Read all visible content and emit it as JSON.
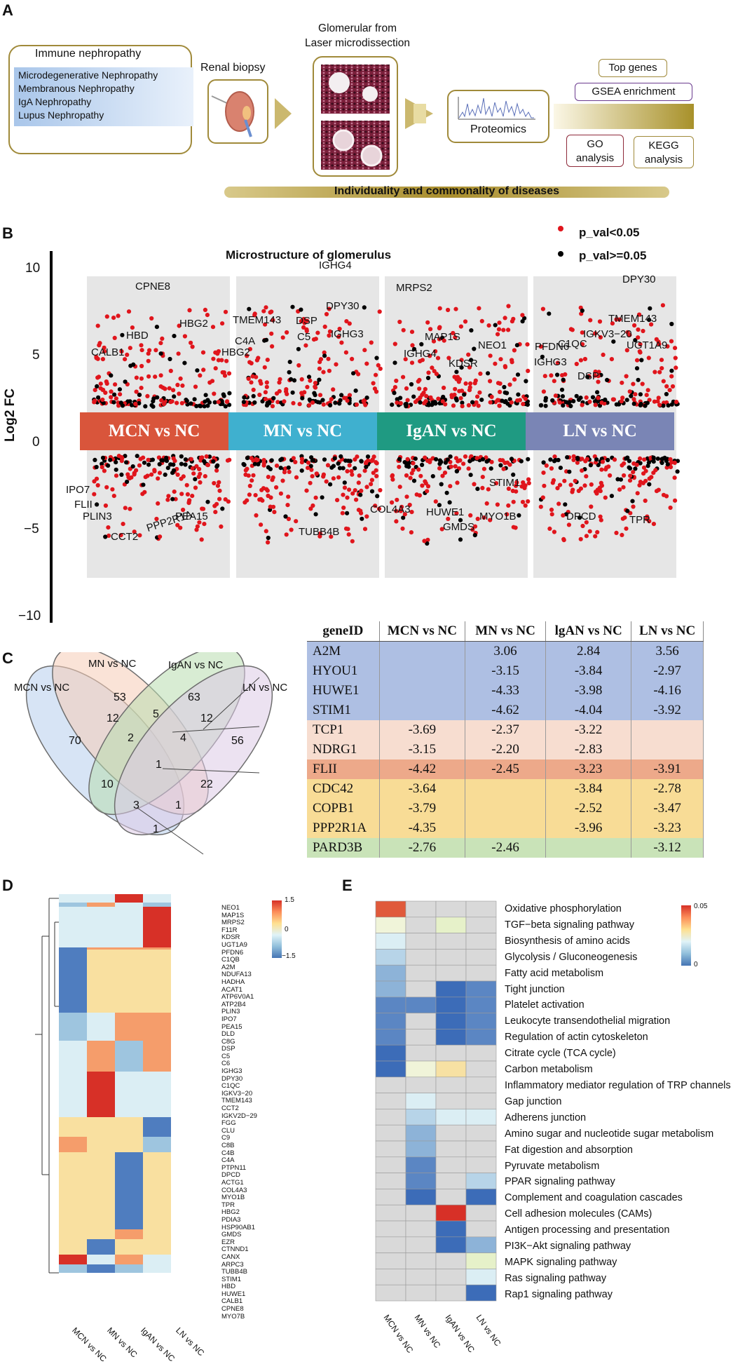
{
  "panelA": {
    "letter": "A",
    "immune_title": "Immune nephropathy",
    "diseases": [
      "Microdegenerative Nephropathy",
      "Membranous Nephropathy",
      "IgA Nephropathy",
      "Lupus Nephropathy"
    ],
    "biopsy_label": "Renal biopsy",
    "lcm_label_1": "Glomerular from",
    "lcm_label_2": "Laser microdissection",
    "proteomics_label": "Proteomics",
    "top_genes": "Top genes",
    "gsea": "GSEA enrichment",
    "go_1": "GO",
    "go_2": "analysis",
    "kegg_1": "KEGG",
    "kegg_2": "analysis",
    "bottom_banner": "Individuality and commonality of diseases"
  },
  "panelB": {
    "letter": "B",
    "title": "Microstructure of glomerulus",
    "legend_sig": "p_val<0.05",
    "legend_nonsig": "p_val>=0.05",
    "colors": {
      "sig": "#e0151c",
      "nonsig": "#000000"
    },
    "ylabel": "Log2 FC",
    "yticks": [
      "10",
      "5",
      "0",
      "−5",
      "−10"
    ],
    "groups": [
      {
        "label": "MCN vs NC",
        "color": "#d9553b"
      },
      {
        "label": "MN vs NC",
        "color": "#3fb0cf"
      },
      {
        "label": "IgAN vs NC",
        "color": "#1f9a82"
      },
      {
        "label": "LN vs NC",
        "color": "#7a85b5"
      }
    ],
    "genes": {
      "mcn": [
        "CPNE8",
        "HBG2",
        "HBD",
        "CALB1",
        "IPO7",
        "FLII",
        "PLIN3",
        "CCT2",
        "PPP2R1A",
        "PEA15"
      ],
      "mn": [
        "IGHG4",
        "TMEM143",
        "DPY30",
        "C4A",
        "C5",
        "DSP",
        "IGHG3",
        "HBG2",
        "TUBB4B"
      ],
      "igan": [
        "MRPS2",
        "MAP1S",
        "NEO1",
        "IGHG4",
        "KDSR",
        "COL4A3",
        "STIM1",
        "HUWE1",
        "MYO1B",
        "GMDS"
      ],
      "ln": [
        "DPY30",
        "PFDN6",
        "TMEM143",
        "IGKV3−20",
        "C1QC",
        "UGT1A9",
        "IGHG3",
        "DSP",
        "DPCD",
        "TPR"
      ]
    }
  },
  "panelC": {
    "letter": "C",
    "venn_labels": [
      "MCN vs NC",
      "MN vs NC",
      "IgAN vs NC",
      "LN vs NC"
    ],
    "venn_counts": [
      "70",
      "53",
      "63",
      "56",
      "12",
      "5",
      "12",
      "2",
      "4",
      "1",
      "10",
      "22",
      "3",
      "1",
      "1"
    ],
    "table_headers": [
      "geneID",
      "MCN vs NC",
      "MN vs NC",
      "lgAN vs NC",
      "LN vs NC"
    ],
    "rows": [
      {
        "gene": "A2M",
        "mcn": "",
        "mn": "3.06",
        "igan": "2.84",
        "ln": "3.56",
        "bg": "#aebfe3"
      },
      {
        "gene": "HYOU1",
        "mcn": "",
        "mn": "-3.15",
        "igan": "-3.84",
        "ln": "-2.97",
        "bg": "#aebfe3"
      },
      {
        "gene": "HUWE1",
        "mcn": "",
        "mn": "-4.33",
        "igan": "-3.98",
        "ln": "-4.16",
        "bg": "#aebfe3"
      },
      {
        "gene": "STIM1",
        "mcn": "",
        "mn": "-4.62",
        "igan": "-4.04",
        "ln": "-3.92",
        "bg": "#aebfe3"
      },
      {
        "gene": "TCP1",
        "mcn": "-3.69",
        "mn": "-2.37",
        "igan": "-3.22",
        "ln": "",
        "bg": "#f7ddd0"
      },
      {
        "gene": "NDRG1",
        "mcn": "-3.15",
        "mn": "-2.20",
        "igan": "-2.83",
        "ln": "",
        "bg": "#f7ddd0"
      },
      {
        "gene": "FLII",
        "mcn": "-4.42",
        "mn": "-2.45",
        "igan": "-3.23",
        "ln": "-3.91",
        "bg": "#eda98a"
      },
      {
        "gene": "CDC42",
        "mcn": "-3.64",
        "mn": "",
        "igan": "-3.84",
        "ln": "-2.78",
        "bg": "#f8dc96"
      },
      {
        "gene": "COPB1",
        "mcn": "-3.79",
        "mn": "",
        "igan": "-2.52",
        "ln": "-3.47",
        "bg": "#f8dc96"
      },
      {
        "gene": "PPP2R1A",
        "mcn": "-4.35",
        "mn": "",
        "igan": "-3.96",
        "ln": "-3.23",
        "bg": "#f8dc96"
      },
      {
        "gene": "PARD3B",
        "mcn": "-2.76",
        "mn": "-2.46",
        "igan": "",
        "ln": "-3.12",
        "bg": "#c9e3b8"
      }
    ]
  },
  "panelD": {
    "letter": "D",
    "legend": [
      "1.5",
      "0",
      "−1.5"
    ],
    "xlabels": [
      "MCN vs NC",
      "MN vs NC",
      "IgAN vs NC",
      "LN vs NC"
    ],
    "genes": [
      "NEO1",
      "MAP1S",
      "MRPS2",
      "F11R",
      "KDSR",
      "UGT1A9",
      "PFDN6",
      "C1QB",
      "A2M",
      "NDUFA13",
      "HADHA",
      "ACAT1",
      "ATP6V0A1",
      "ATP2B4",
      "PLIN3",
      "IPO7",
      "PEA15",
      "DLD",
      "C8G",
      "DSP",
      "C5",
      "C6",
      "IGHG3",
      "DPY30",
      "C1QC",
      "IGKV3−20",
      "TMEM143",
      "CCT2",
      "IGKV2D−29",
      "FGG",
      "CLU",
      "C9",
      "C8B",
      "C4B",
      "C4A",
      "PTPN11",
      "DPCD",
      "ACTG1",
      "COL4A3",
      "MYO1B",
      "TPR",
      "HBG2",
      "PDIA3",
      "HSP90AB1",
      "GMDS",
      "EZR",
      "CTNND1",
      "CANX",
      "ARPC3",
      "TUBB4B",
      "STIM1",
      "HBD",
      "HUWE1",
      "CALB1",
      "CPNE8",
      "MYO7B"
    ]
  },
  "panelE": {
    "letter": "E",
    "legend_top": "0.05",
    "legend_bottom": "0",
    "xlabels": [
      "MCN vs NC",
      "MN vs NC",
      "IgAN vs NC",
      "LN vs NC"
    ],
    "pathways": [
      "Oxidative phosphorylation",
      "TGF−beta signaling pathway",
      "Biosynthesis of amino acids",
      "Glycolysis / Gluconeogenesis",
      "Fatty acid metabolism",
      "Tight junction",
      "Platelet activation",
      "Leukocyte transendothelial migration",
      "Regulation of actin cytoskeleton",
      "Citrate cycle (TCA cycle)",
      "Carbon metabolism",
      "Inflammatory mediator regulation of TRP channels",
      "Gap junction",
      "Adherens junction",
      "Amino sugar and nucleotide sugar metabolism",
      "Fat digestion and absorption",
      "Pyruvate metabolism",
      "PPAR signaling pathway",
      "Complement and coagulation cascades",
      "Cell adhesion molecules (CAMs)",
      "Antigen processing and presentation",
      "PI3K−Akt signaling pathway",
      "MAPK signaling pathway",
      "Ras signaling pathway",
      "Rap1 signaling pathway"
    ]
  }
}
